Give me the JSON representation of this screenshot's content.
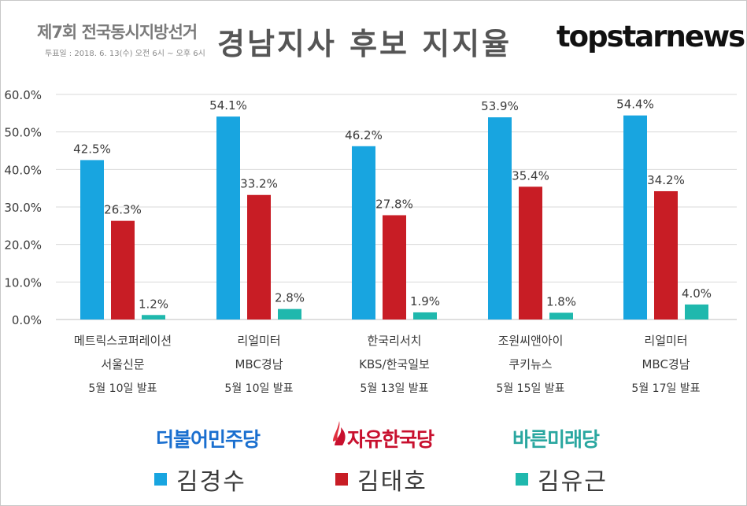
{
  "header": {
    "election_title": "제7회 전국동시지방선거",
    "election_date": "투표일 : 2018. 6. 13(수) 오전 6시 ~ 오후 6시",
    "main_title": "경남지사 후보 지지율",
    "brand": "topstarnews"
  },
  "party_logos": [
    "더불어민주당",
    "자유한국당",
    "바른미래당"
  ],
  "chart_data": {
    "type": "bar",
    "title": "경남지사 후보 지지율",
    "ylim": [
      0,
      60
    ],
    "yticks": [
      "0.0%",
      "10.0%",
      "20.0%",
      "30.0%",
      "40.0%",
      "50.0%",
      "60.0%"
    ],
    "grid": true,
    "legend_position": "bottom",
    "categories": [
      [
        "메트릭스코퍼레이션",
        "서울신문",
        "5월 10일 발표"
      ],
      [
        "리얼미터",
        "MBC경남",
        "5월 10일 발표"
      ],
      [
        "한국리서치",
        "KBS/한국일보",
        "5월 13일 발표"
      ],
      [
        "조원씨앤아이",
        "쿠키뉴스",
        "5월 15일 발표"
      ],
      [
        "리얼미터",
        "MBC경남",
        "5월 17일 발표"
      ]
    ],
    "series": [
      {
        "name": "김경수",
        "color": "#18a5e0",
        "values": [
          42.5,
          54.1,
          46.2,
          53.9,
          54.4
        ]
      },
      {
        "name": "김태호",
        "color": "#c81d25",
        "values": [
          26.3,
          33.2,
          27.8,
          35.4,
          34.2
        ]
      },
      {
        "name": "김유근",
        "color": "#1fb8ad",
        "values": [
          1.2,
          2.8,
          1.9,
          1.8,
          4.0
        ]
      }
    ]
  }
}
